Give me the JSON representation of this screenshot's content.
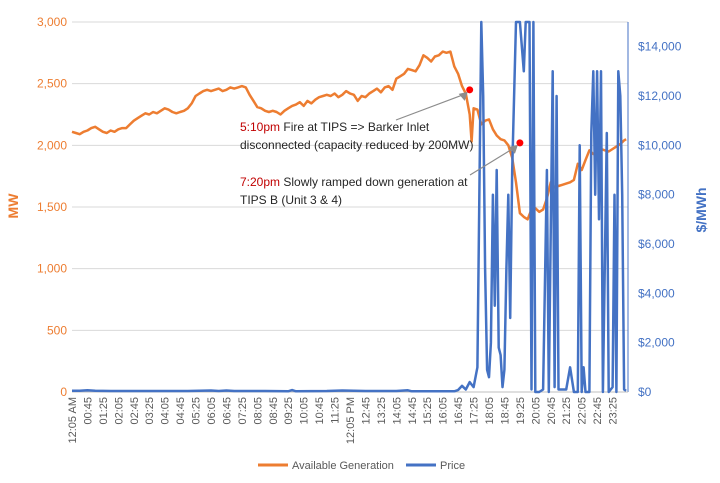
{
  "chart_data": {
    "type": "line",
    "title": "",
    "ylabel": "MW",
    "y2label": "$/MWh",
    "ylim": [
      0,
      3000
    ],
    "y2lim": [
      0,
      15000
    ],
    "yticks": [
      {
        "value": 0,
        "label": "0"
      },
      {
        "value": 500,
        "label": "500"
      },
      {
        "value": 1000,
        "label": "1,000"
      },
      {
        "value": 1500,
        "label": "1,500"
      },
      {
        "value": 2000,
        "label": "2,000"
      },
      {
        "value": 2500,
        "label": "2,500"
      },
      {
        "value": 3000,
        "label": "3,000"
      }
    ],
    "y2ticks": [
      {
        "value": 0,
        "label": "$0"
      },
      {
        "value": 2000,
        "label": "$2,000"
      },
      {
        "value": 4000,
        "label": "$4,000"
      },
      {
        "value": 6000,
        "label": "$6,000"
      },
      {
        "value": 8000,
        "label": "$8,000"
      },
      {
        "value": 10000,
        "label": "$10,000"
      },
      {
        "value": 12000,
        "label": "$12,000"
      },
      {
        "value": 14000,
        "label": "$14,000"
      }
    ],
    "xticks": [
      "12:05 AM",
      "00:45",
      "01:25",
      "02:05",
      "02:45",
      "03:25",
      "04:05",
      "04:45",
      "05:25",
      "06:05",
      "06:45",
      "07:25",
      "08:05",
      "08:45",
      "09:25",
      "10:05",
      "10:45",
      "11:25",
      "12:05 PM",
      "12:45",
      "13:25",
      "14:05",
      "14:45",
      "15:25",
      "16:05",
      "16:45",
      "17:25",
      "18:05",
      "18:45",
      "19:25",
      "20:05",
      "20:45",
      "21:25",
      "22:05",
      "22:45",
      "23:25"
    ],
    "x_interval_minutes": 40,
    "grid": "horizontal",
    "legend_position": "bottom",
    "series": [
      {
        "name": "Available Generation",
        "axis": "left",
        "color": "#ED7D31",
        "points": [
          [
            0,
            2110
          ],
          [
            10,
            2100
          ],
          [
            20,
            2090
          ],
          [
            30,
            2110
          ],
          [
            40,
            2120
          ],
          [
            50,
            2140
          ],
          [
            60,
            2150
          ],
          [
            70,
            2130
          ],
          [
            80,
            2110
          ],
          [
            90,
            2100
          ],
          [
            100,
            2120
          ],
          [
            110,
            2110
          ],
          [
            120,
            2130
          ],
          [
            130,
            2140
          ],
          [
            140,
            2140
          ],
          [
            150,
            2170
          ],
          [
            160,
            2200
          ],
          [
            170,
            2220
          ],
          [
            180,
            2240
          ],
          [
            190,
            2260
          ],
          [
            200,
            2250
          ],
          [
            210,
            2270
          ],
          [
            220,
            2260
          ],
          [
            230,
            2280
          ],
          [
            240,
            2300
          ],
          [
            250,
            2290
          ],
          [
            260,
            2270
          ],
          [
            270,
            2260
          ],
          [
            280,
            2270
          ],
          [
            290,
            2280
          ],
          [
            300,
            2300
          ],
          [
            310,
            2340
          ],
          [
            320,
            2400
          ],
          [
            330,
            2420
          ],
          [
            340,
            2440
          ],
          [
            350,
            2450
          ],
          [
            360,
            2440
          ],
          [
            370,
            2450
          ],
          [
            380,
            2460
          ],
          [
            390,
            2440
          ],
          [
            400,
            2450
          ],
          [
            410,
            2470
          ],
          [
            420,
            2460
          ],
          [
            430,
            2470
          ],
          [
            440,
            2480
          ],
          [
            450,
            2470
          ],
          [
            460,
            2410
          ],
          [
            470,
            2360
          ],
          [
            480,
            2310
          ],
          [
            490,
            2300
          ],
          [
            500,
            2280
          ],
          [
            510,
            2270
          ],
          [
            520,
            2280
          ],
          [
            530,
            2270
          ],
          [
            540,
            2250
          ],
          [
            550,
            2280
          ],
          [
            560,
            2300
          ],
          [
            570,
            2320
          ],
          [
            580,
            2330
          ],
          [
            590,
            2350
          ],
          [
            600,
            2320
          ],
          [
            610,
            2360
          ],
          [
            620,
            2340
          ],
          [
            630,
            2370
          ],
          [
            640,
            2390
          ],
          [
            650,
            2400
          ],
          [
            660,
            2410
          ],
          [
            670,
            2400
          ],
          [
            680,
            2420
          ],
          [
            690,
            2390
          ],
          [
            700,
            2410
          ],
          [
            710,
            2440
          ],
          [
            720,
            2420
          ],
          [
            730,
            2410
          ],
          [
            740,
            2360
          ],
          [
            750,
            2400
          ],
          [
            760,
            2390
          ],
          [
            770,
            2420
          ],
          [
            780,
            2440
          ],
          [
            790,
            2460
          ],
          [
            800,
            2430
          ],
          [
            810,
            2470
          ],
          [
            820,
            2480
          ],
          [
            830,
            2450
          ],
          [
            840,
            2540
          ],
          [
            850,
            2560
          ],
          [
            860,
            2580
          ],
          [
            870,
            2620
          ],
          [
            880,
            2610
          ],
          [
            890,
            2600
          ],
          [
            900,
            2650
          ],
          [
            910,
            2730
          ],
          [
            920,
            2710
          ],
          [
            930,
            2680
          ],
          [
            940,
            2720
          ],
          [
            950,
            2730
          ],
          [
            960,
            2760
          ],
          [
            970,
            2750
          ],
          [
            980,
            2760
          ],
          [
            990,
            2640
          ],
          [
            1000,
            2580
          ],
          [
            1010,
            2480
          ],
          [
            1020,
            2420
          ],
          [
            1030,
            2250
          ],
          [
            1035,
            2030
          ],
          [
            1040,
            2300
          ],
          [
            1050,
            2290
          ],
          [
            1060,
            2170
          ],
          [
            1070,
            2200
          ],
          [
            1080,
            2210
          ],
          [
            1090,
            2130
          ],
          [
            1100,
            2080
          ],
          [
            1110,
            2050
          ],
          [
            1120,
            2040
          ],
          [
            1130,
            2000
          ],
          [
            1140,
            1900
          ],
          [
            1150,
            1700
          ],
          [
            1160,
            1450
          ],
          [
            1170,
            1420
          ],
          [
            1180,
            1400
          ],
          [
            1190,
            1480
          ],
          [
            1200,
            1490
          ],
          [
            1210,
            1460
          ],
          [
            1220,
            1480
          ],
          [
            1230,
            1570
          ],
          [
            1240,
            1700
          ],
          [
            1250,
            1660
          ],
          [
            1260,
            1670
          ],
          [
            1270,
            1680
          ],
          [
            1280,
            1690
          ],
          [
            1290,
            1700
          ],
          [
            1300,
            1720
          ],
          [
            1310,
            1850
          ],
          [
            1320,
            1800
          ],
          [
            1330,
            1880
          ],
          [
            1340,
            1960
          ],
          [
            1350,
            1930
          ],
          [
            1360,
            1930
          ],
          [
            1370,
            1970
          ],
          [
            1380,
            1960
          ],
          [
            1390,
            1950
          ],
          [
            1400,
            1970
          ],
          [
            1410,
            1990
          ],
          [
            1420,
            2010
          ],
          [
            1430,
            2040
          ],
          [
            1435,
            2050
          ]
        ]
      },
      {
        "name": "Price",
        "axis": "right",
        "color": "#4472C4",
        "points": [
          [
            0,
            50
          ],
          [
            20,
            50
          ],
          [
            40,
            70
          ],
          [
            60,
            50
          ],
          [
            100,
            40
          ],
          [
            200,
            40
          ],
          [
            300,
            40
          ],
          [
            360,
            60
          ],
          [
            380,
            40
          ],
          [
            400,
            60
          ],
          [
            420,
            40
          ],
          [
            500,
            40
          ],
          [
            560,
            30
          ],
          [
            570,
            80
          ],
          [
            580,
            30
          ],
          [
            660,
            40
          ],
          [
            700,
            60
          ],
          [
            760,
            40
          ],
          [
            840,
            40
          ],
          [
            870,
            70
          ],
          [
            880,
            30
          ],
          [
            970,
            30
          ],
          [
            990,
            30
          ],
          [
            1000,
            80
          ],
          [
            1010,
            250
          ],
          [
            1020,
            100
          ],
          [
            1030,
            400
          ],
          [
            1040,
            200
          ],
          [
            1050,
            1000
          ],
          [
            1060,
            15000
          ],
          [
            1065,
            12000
          ],
          [
            1070,
            5000
          ],
          [
            1075,
            900
          ],
          [
            1080,
            600
          ],
          [
            1085,
            2000
          ],
          [
            1090,
            8000
          ],
          [
            1095,
            3500
          ],
          [
            1100,
            9000
          ],
          [
            1105,
            1800
          ],
          [
            1110,
            1500
          ],
          [
            1115,
            200
          ],
          [
            1120,
            900
          ],
          [
            1125,
            5000
          ],
          [
            1130,
            8000
          ],
          [
            1135,
            3000
          ],
          [
            1140,
            9000
          ],
          [
            1150,
            15000
          ],
          [
            1160,
            15000
          ],
          [
            1170,
            13000
          ],
          [
            1175,
            15000
          ],
          [
            1185,
            15000
          ],
          [
            1190,
            100
          ],
          [
            1195,
            15000
          ],
          [
            1200,
            0
          ],
          [
            1210,
            0
          ],
          [
            1220,
            100
          ],
          [
            1230,
            9000
          ],
          [
            1235,
            0
          ],
          [
            1245,
            13000
          ],
          [
            1250,
            200
          ],
          [
            1255,
            12000
          ],
          [
            1260,
            100
          ],
          [
            1280,
            100
          ],
          [
            1290,
            1000
          ],
          [
            1300,
            0
          ],
          [
            1310,
            0
          ],
          [
            1315,
            10000
          ],
          [
            1320,
            0
          ],
          [
            1325,
            1000
          ],
          [
            1330,
            0
          ],
          [
            1340,
            0
          ],
          [
            1345,
            10500
          ],
          [
            1350,
            13000
          ],
          [
            1355,
            8000
          ],
          [
            1360,
            13000
          ],
          [
            1365,
            7000
          ],
          [
            1370,
            13000
          ],
          [
            1375,
            0
          ],
          [
            1385,
            10500
          ],
          [
            1390,
            0
          ],
          [
            1400,
            200
          ],
          [
            1405,
            8000
          ],
          [
            1410,
            0
          ],
          [
            1415,
            13000
          ],
          [
            1420,
            12000
          ],
          [
            1425,
            8000
          ],
          [
            1430,
            100
          ],
          [
            1435,
            50
          ]
        ]
      }
    ],
    "annotations": [
      {
        "time_prefix": "5:10pm",
        "text_line1": " Fire at TIPS => Barker Inlet",
        "text_line2": "disconnected (capacity reduced by 200MW)",
        "marker_minute": 1030,
        "marker_value": 2450
      },
      {
        "time_prefix": "7:20pm",
        "text_line1": " Slowly ramped down generation at",
        "text_line2": "TIPS B (Unit 3 & 4)",
        "marker_minute": 1160,
        "marker_value": 2020
      }
    ],
    "annotation_time_color": "#C00000",
    "axis_left_color": "#ED7D31",
    "axis_right_color": "#4472C4",
    "grid_color": "#D9D9D9",
    "text_color": "#595959"
  }
}
